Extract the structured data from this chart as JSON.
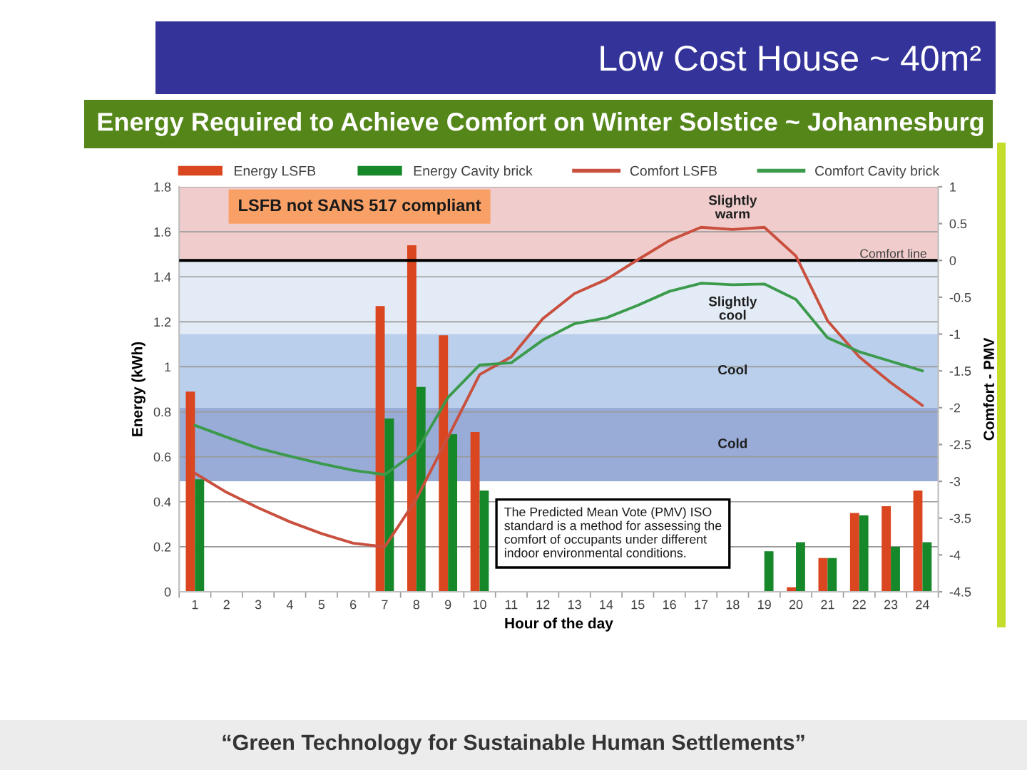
{
  "chart_data": {
    "type": "bar",
    "title": "Low Cost House ~ 40m²",
    "subtitle": "Energy Required to Achieve Comfort on Winter Solstice ~ Johannesburg",
    "xlabel": "Hour of the day",
    "ylabel": "Energy (kWh)",
    "y2label": "Comfort - PMV",
    "categories": [
      "1",
      "2",
      "3",
      "4",
      "5",
      "6",
      "7",
      "8",
      "9",
      "10",
      "11",
      "12",
      "13",
      "14",
      "15",
      "16",
      "17",
      "18",
      "19",
      "20",
      "21",
      "22",
      "23",
      "24"
    ],
    "series": [
      {
        "name": "Energy LSFB",
        "color": "#d9461f",
        "values": [
          0.89,
          null,
          null,
          null,
          null,
          null,
          1.27,
          1.54,
          1.14,
          0.71,
          null,
          null,
          null,
          null,
          null,
          null,
          null,
          null,
          null,
          0.02,
          0.15,
          0.35,
          0.38,
          0.45
        ]
      },
      {
        "name": "Energy Cavity brick",
        "color": "#16882a",
        "values": [
          0.5,
          null,
          null,
          null,
          null,
          null,
          0.77,
          0.91,
          0.7,
          0.45,
          null,
          null,
          null,
          null,
          null,
          null,
          null,
          null,
          0.18,
          0.22,
          0.15,
          0.34,
          0.2,
          0.22
        ]
      },
      {
        "name": "Comfort LSFB",
        "type": "line",
        "axis": "y2",
        "color": "#c9503f",
        "values": [
          -2.89,
          -3.15,
          -3.36,
          -3.55,
          -3.71,
          -3.84,
          -3.89,
          -3.24,
          -2.4,
          -1.55,
          -1.31,
          -0.79,
          -0.45,
          -0.26,
          0.01,
          0.27,
          0.45,
          0.42,
          0.45,
          0.06,
          -0.82,
          -1.31,
          -1.66,
          -1.97
        ]
      },
      {
        "name": "Comfort Cavity brick",
        "type": "line",
        "axis": "y2",
        "color": "#3c9a4c",
        "values": [
          -2.24,
          -2.4,
          -2.55,
          -2.66,
          -2.76,
          -2.85,
          -2.91,
          -2.6,
          -1.86,
          -1.42,
          -1.39,
          -1.08,
          -0.86,
          -0.78,
          -0.61,
          -0.42,
          -0.31,
          -0.33,
          -0.32,
          -0.53,
          -1.05,
          -1.24,
          -1.37,
          -1.5
        ]
      }
    ],
    "ylim": [
      0,
      1.8
    ],
    "yticks": [
      0,
      0.2,
      0.4,
      0.6,
      0.8,
      1,
      1.2,
      1.4,
      1.6,
      1.8
    ],
    "y2lim": [
      -4.5,
      1
    ],
    "y2ticks": [
      -4.5,
      -4,
      -3.5,
      -3,
      -2.5,
      -2,
      -1.5,
      -1,
      -0.5,
      0,
      0.5,
      1
    ],
    "bands": [
      {
        "axis": "y2",
        "from": 0,
        "to": 1,
        "label": "Slightly warm",
        "color": "#f0cdcc"
      },
      {
        "axis": "y2",
        "from": -1,
        "to": 0,
        "label": "Slightly cool",
        "color": "#e3ecf6"
      },
      {
        "axis": "y2",
        "from": -2,
        "to": -1,
        "label": "Cool",
        "color": "#b9cfeb"
      },
      {
        "axis": "y2",
        "from": -3,
        "to": -2,
        "label": "Cold",
        "color": "#98acd7"
      }
    ],
    "ref_lines": [
      {
        "axis": "y2",
        "value": 0,
        "label": "Comfort line",
        "color": "#000000"
      }
    ],
    "annotations": [
      "LSFB not SANS 517 compliant",
      "The Predicted Mean Vote (PMV) ISO standard is a method for assessing the comfort of occupants under different indoor environmental conditions.",
      "“Green Technology for Sustainable Human Settlements”"
    ],
    "grid": "y",
    "legend": "top"
  }
}
